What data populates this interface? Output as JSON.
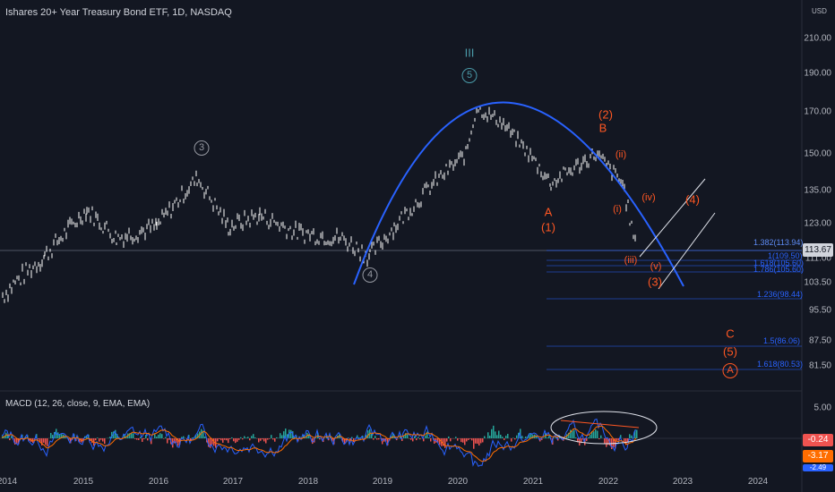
{
  "header": {
    "title": "Ishares 20+ Year Treasury Bond ETF, 1D, NASDAQ",
    "currency": "USD",
    "last_price": "113.67"
  },
  "colors": {
    "background": "#131722",
    "accent_blue": "#2962ff",
    "wave_red": "#ff5722",
    "macd_line": "#2962ff",
    "signal_line": "#ff6d00",
    "candle": "#ffffff"
  },
  "price_scale": [
    "210.00",
    "190.00",
    "170.00",
    "150.00",
    "135.00",
    "123.00",
    "111.00",
    "103.50",
    "95.50",
    "87.50",
    "81.50"
  ],
  "years": [
    "2014",
    "2015",
    "2016",
    "2017",
    "2018",
    "2019",
    "2020",
    "2021",
    "2022",
    "2023",
    "2024"
  ],
  "waves": {
    "c3": "3",
    "c4": "4",
    "c5": "5",
    "roman3": "III",
    "w2": "(2)",
    "wB": "B",
    "wii": "(ii)",
    "wA": "A",
    "w1": "(1)",
    "wi": "(i)",
    "wiv": "(iv)",
    "w4": "(4)",
    "wiii": "(iii)",
    "wv": "(v)",
    "w3": "(3)",
    "wC": "C",
    "w5": "(5)",
    "cA": "A"
  },
  "fib_levels": [
    {
      "label": "1.382(113.94)"
    },
    {
      "label": "1(109.50)"
    },
    {
      "label": "1.618(105.60)"
    },
    {
      "label": "1.786(105.60)"
    },
    {
      "label": "1.236(98.44)"
    },
    {
      "label": "1.5(86.06)"
    },
    {
      "label": "1.618(80.53)"
    }
  ],
  "macd": {
    "title": "MACD (12, 26, close, 9, EMA, EMA)",
    "scale_top": "5.00",
    "badge1": "-0.24",
    "badge2": "-3.17",
    "badge3": "-2.49"
  },
  "chart_data": {
    "type": "candlestick",
    "title": "Ishares 20+ Year Treasury Bond ETF, 1D, NASDAQ",
    "x": [
      "2014",
      "2014.5",
      "2015",
      "2015.5",
      "2016",
      "2016.5",
      "2017",
      "2017.5",
      "2018",
      "2018.5",
      "2018.9",
      "2019",
      "2019.5",
      "2020",
      "2020.2",
      "2020.5",
      "2021",
      "2021.5",
      "2022",
      "2022.3"
    ],
    "close": [
      100,
      112,
      128,
      118,
      122,
      140,
      122,
      126,
      120,
      118,
      112,
      122,
      140,
      150,
      172,
      165,
      138,
      150,
      138,
      113.67
    ],
    "ylim": [
      78,
      228
    ]
  }
}
